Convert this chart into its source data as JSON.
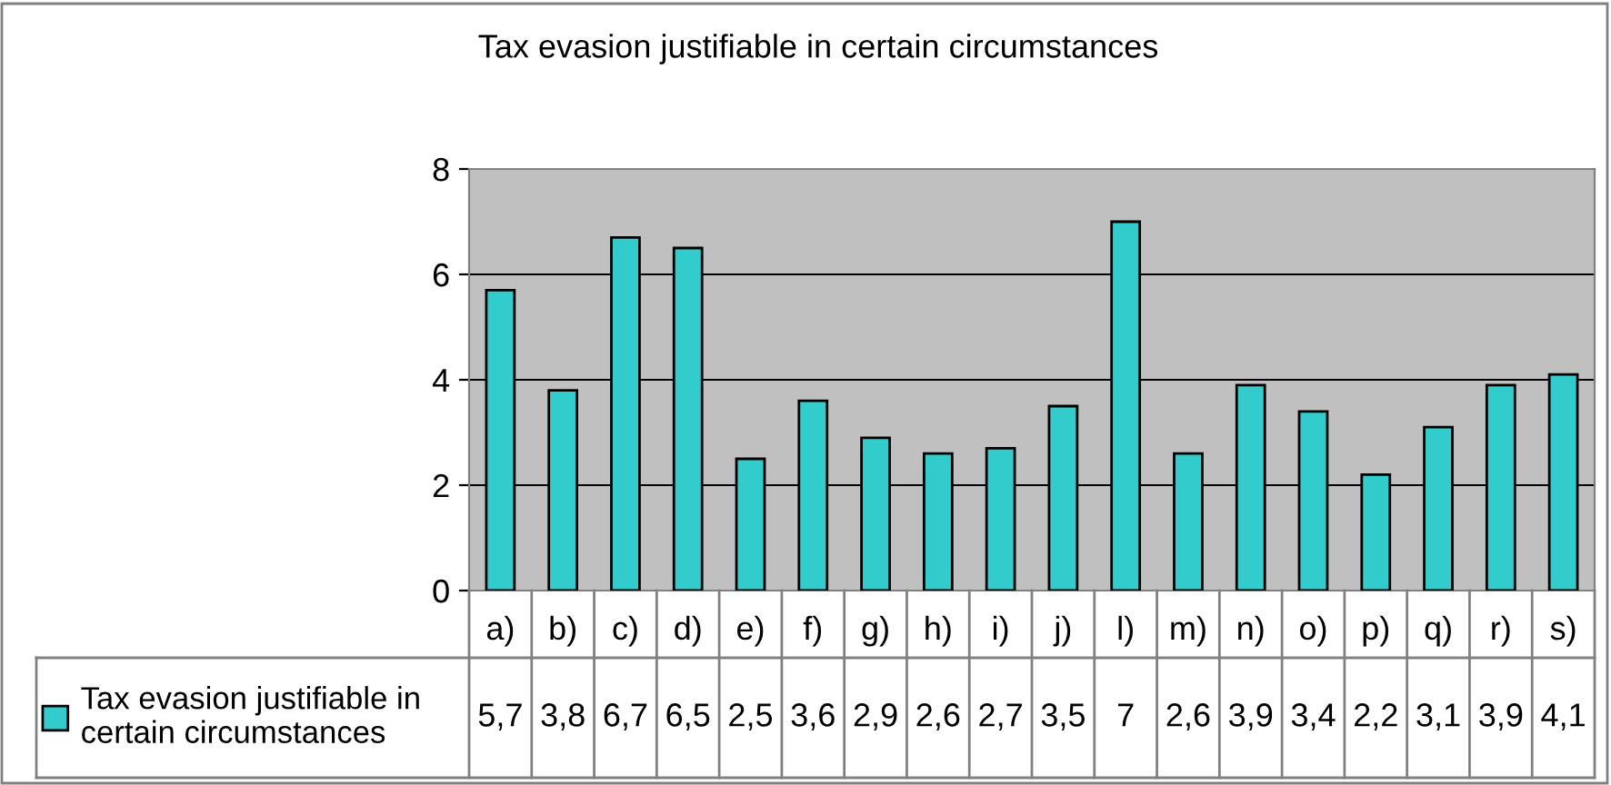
{
  "chart_data": {
    "type": "bar",
    "title": "Tax evasion justifiable in certain circumstances",
    "categories": [
      "a)",
      "b)",
      "c)",
      "d)",
      "e)",
      "f)",
      "g)",
      "h)",
      "i)",
      "j)",
      "l)",
      "m)",
      "n)",
      "o)",
      "p)",
      "q)",
      "r)",
      "s)"
    ],
    "series": [
      {
        "name": "Tax evasion justifiable in certain circumstances",
        "color": "#33cccc",
        "values": [
          5.7,
          3.8,
          6.7,
          6.5,
          2.5,
          3.6,
          2.9,
          2.6,
          2.7,
          3.5,
          7,
          2.6,
          3.9,
          3.4,
          2.2,
          3.1,
          3.9,
          4.1
        ],
        "value_labels": [
          "5,7",
          "3,8",
          "6,7",
          "6,5",
          "2,5",
          "3,6",
          "2,9",
          "2,6",
          "2,7",
          "3,5",
          "7",
          "2,6",
          "3,9",
          "3,4",
          "2,2",
          "3,1",
          "3,9",
          "4,1"
        ]
      }
    ],
    "ylim": [
      0,
      8
    ],
    "yticks": [
      0,
      2,
      4,
      6,
      8
    ],
    "grid": "y",
    "legend": "bottom left"
  }
}
